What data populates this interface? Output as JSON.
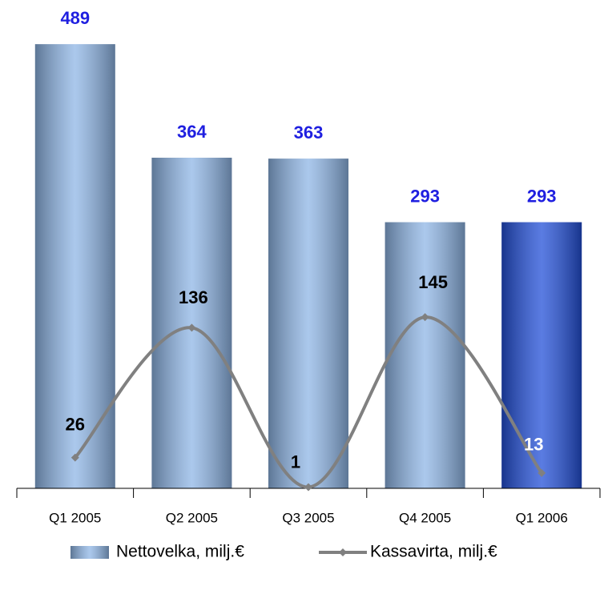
{
  "chart_data": {
    "type": "bar",
    "categories": [
      "Q1 2005",
      "Q2 2005",
      "Q3 2005",
      "Q4 2005",
      "Q1 2006"
    ],
    "ylim": [
      0,
      520
    ],
    "y2lim": [
      0,
      400
    ],
    "series": [
      {
        "name": "Nettovelka, milj.€",
        "type": "bar",
        "colors": [
          "#8fb6e6",
          "#8fb6e6",
          "#8fb6e6",
          "#8fb6e6",
          "#2350d8"
        ],
        "label_color": "#1f1fe0",
        "values": [
          489,
          364,
          363,
          293,
          293
        ]
      },
      {
        "name": "Kassavirta, milj.€",
        "type": "line",
        "axis": "y2",
        "color": "#808080",
        "values": [
          26,
          136,
          1,
          145,
          13
        ]
      }
    ]
  }
}
